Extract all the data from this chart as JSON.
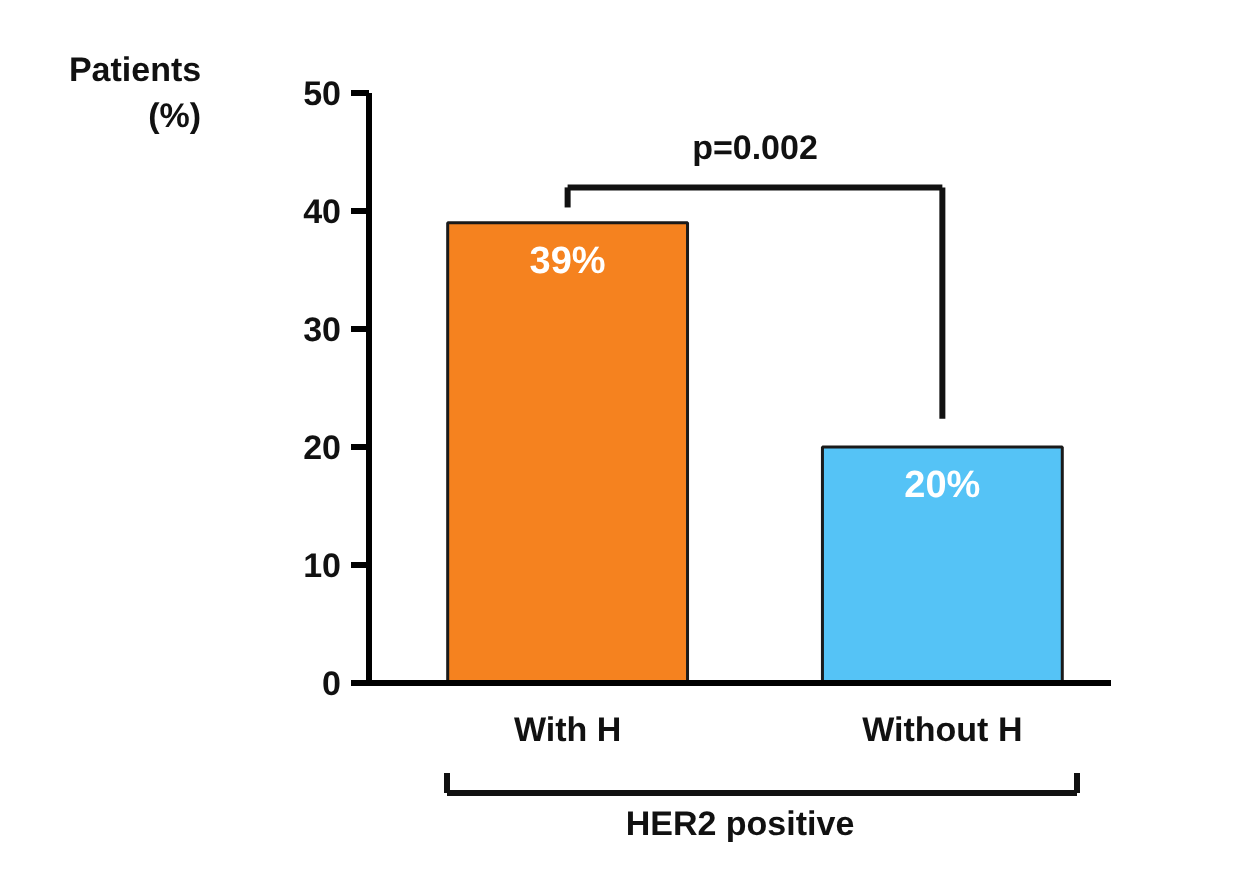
{
  "chart_data": {
    "type": "bar",
    "categories": [
      "With H",
      "Without H"
    ],
    "values": [
      39,
      20
    ],
    "colors": [
      "#f5821f",
      "#55c3f6"
    ],
    "value_labels": [
      "39%",
      "20%"
    ],
    "ylabel": "Patients (%)",
    "xlabel": "HER2 positive",
    "annotations": [
      "p=0.002"
    ],
    "ylim": [
      0,
      50
    ],
    "yticks": [
      0,
      10,
      20,
      30,
      40,
      50
    ],
    "grid": false
  }
}
